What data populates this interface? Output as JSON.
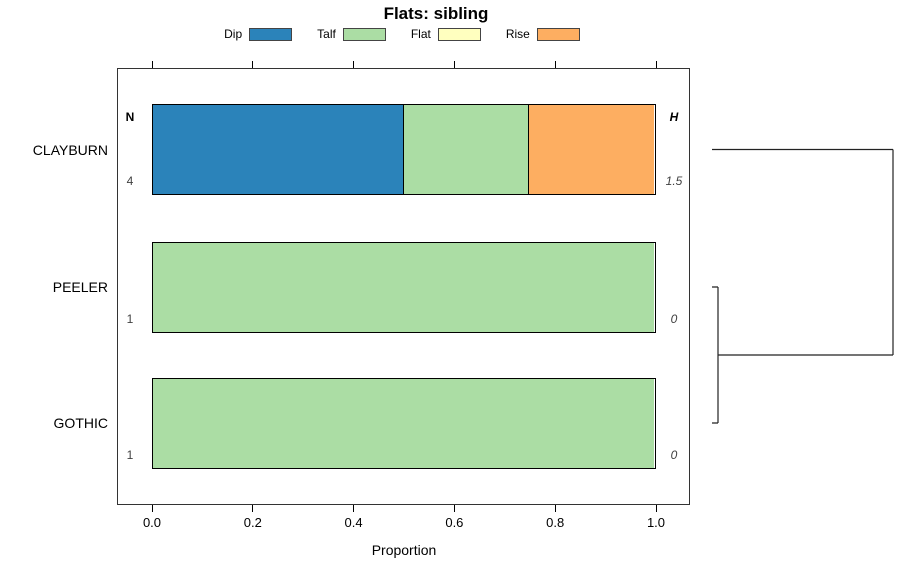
{
  "title": "Flats: sibling",
  "legend": [
    {
      "label": "Dip",
      "color": "#2B83BA"
    },
    {
      "label": "Talf",
      "color": "#ABDDA4"
    },
    {
      "label": "Flat",
      "color": "#FFFFBF"
    },
    {
      "label": "Rise",
      "color": "#FDAE61"
    }
  ],
  "chart_data": {
    "type": "bar",
    "orientation": "horizontal",
    "stacked": true,
    "title": "Flats: sibling",
    "xlabel": "Proportion",
    "xlim": [
      0,
      1
    ],
    "xticks": [
      0.0,
      0.2,
      0.4,
      0.6,
      0.8,
      1.0
    ],
    "xtick_labels": [
      "0.0",
      "0.2",
      "0.4",
      "0.6",
      "0.8",
      "1.0"
    ],
    "grid": false,
    "legend_position": "top",
    "categories": [
      "CLAYBURN",
      "PEELER",
      "GOTHIC"
    ],
    "series": [
      {
        "name": "Dip",
        "color": "#2B83BA",
        "values": [
          0.5,
          0,
          0
        ]
      },
      {
        "name": "Talf",
        "color": "#ABDDA4",
        "values": [
          0.25,
          1,
          1
        ]
      },
      {
        "name": "Flat",
        "color": "#FFFFBF",
        "values": [
          0,
          0,
          0
        ]
      },
      {
        "name": "Rise",
        "color": "#FDAE61",
        "values": [
          0.25,
          0,
          0
        ]
      }
    ],
    "n_column": {
      "header": "N",
      "values": [
        "4",
        "1",
        "1"
      ]
    },
    "h_column": {
      "header": "H",
      "values": [
        "1.5",
        "0",
        "0"
      ]
    },
    "dendrogram": {
      "max_height": 1.5,
      "merges": [
        {
          "a": "leaf:1",
          "b": "leaf:2",
          "height": 0,
          "note": "PEELER + GOTHIC"
        },
        {
          "a": "leaf:0",
          "b": "merge:0",
          "height": 1.5,
          "note": "CLAYBURN + (PEELER,GOTHIC)"
        }
      ]
    }
  }
}
